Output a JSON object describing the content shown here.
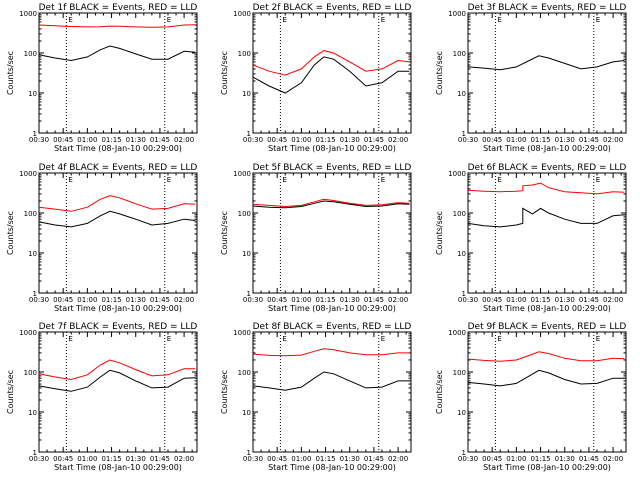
{
  "page": {
    "x_axis_title": "Start Time (08-Jan-10 00:29:00)",
    "y_axis_title": "Counts/sec"
  },
  "chart_data": [
    {
      "type": "line",
      "title": "Det 1f BLACK = Events, RED = LLD",
      "xlabel": "Start Time (08-Jan-10 00:29:00)",
      "ylabel": "Counts/sec",
      "yscale": "log",
      "ylim": [
        1,
        1000
      ],
      "xlim": [
        "00:30",
        "02:08"
      ],
      "x_ticks": [
        "00:30",
        "00:45",
        "01:00",
        "01:15",
        "01:30",
        "01:45",
        "02:00"
      ],
      "y_ticks": [
        "1",
        "10",
        "100",
        "1000"
      ],
      "vertical_markers": [
        "00:47",
        "01:48"
      ],
      "marker_labels": [
        {
          "text": "E",
          "at": "00:47"
        },
        {
          "text": "E",
          "at": "01:48"
        }
      ],
      "x": [
        "00:30",
        "00:40",
        "00:50",
        "01:00",
        "01:08",
        "01:14",
        "01:20",
        "01:30",
        "01:40",
        "01:50",
        "02:00",
        "02:07"
      ],
      "series": [
        {
          "color": "#ff0000",
          "values": [
            500,
            480,
            460,
            450,
            455,
            470,
            465,
            450,
            440,
            450,
            500,
            510
          ]
        },
        {
          "color": "#000000",
          "values": [
            90,
            75,
            65,
            80,
            120,
            150,
            130,
            95,
            70,
            70,
            110,
            105
          ]
        }
      ]
    },
    {
      "type": "line",
      "title": "Det 2f BLACK = Events, RED = LLD",
      "xlabel": "Start Time (08-Jan-10 00:29:00)",
      "ylabel": "Counts/sec",
      "yscale": "log",
      "ylim": [
        1,
        1000
      ],
      "xlim": [
        "00:30",
        "02:08"
      ],
      "x_ticks": [
        "00:30",
        "00:45",
        "01:00",
        "01:15",
        "01:30",
        "01:45",
        "02:00"
      ],
      "y_ticks": [
        "1",
        "10",
        "100",
        "1000"
      ],
      "vertical_markers": [
        "00:47",
        "01:48"
      ],
      "marker_labels": [
        {
          "text": "E",
          "at": "00:47"
        },
        {
          "text": "E",
          "at": "01:48"
        }
      ],
      "x": [
        "00:30",
        "00:40",
        "00:50",
        "01:00",
        "01:08",
        "01:14",
        "01:20",
        "01:30",
        "01:40",
        "01:50",
        "02:00",
        "02:07"
      ],
      "series": [
        {
          "color": "#ff0000",
          "values": [
            50,
            35,
            28,
            40,
            80,
            115,
            100,
            60,
            35,
            40,
            65,
            60
          ]
        },
        {
          "color": "#000000",
          "values": [
            25,
            15,
            10,
            18,
            50,
            80,
            70,
            35,
            15,
            18,
            35,
            35
          ]
        }
      ]
    },
    {
      "type": "line",
      "title": "Det 3f BLACK = Events, RED = LLD",
      "xlabel": "Start Time (08-Jan-10 00:29:00)",
      "ylabel": "Counts/sec",
      "yscale": "log",
      "ylim": [
        1,
        1000
      ],
      "xlim": [
        "00:30",
        "02:08"
      ],
      "x_ticks": [
        "00:30",
        "00:45",
        "01:00",
        "01:15",
        "01:30",
        "01:45",
        "02:00"
      ],
      "y_ticks": [
        "1",
        "10",
        "100",
        "1000"
      ],
      "vertical_markers": [
        "00:47",
        "01:48"
      ],
      "marker_labels": [
        {
          "text": "E",
          "at": "00:47"
        },
        {
          "text": "E",
          "at": "01:48"
        }
      ],
      "x": [
        "00:30",
        "00:40",
        "00:50",
        "01:00",
        "01:08",
        "01:14",
        "01:20",
        "01:30",
        "01:40",
        "01:50",
        "02:00",
        "02:07"
      ],
      "series": [
        {
          "color": "#000000",
          "values": [
            45,
            42,
            38,
            45,
            65,
            85,
            75,
            55,
            40,
            45,
            60,
            65
          ]
        }
      ]
    },
    {
      "type": "line",
      "title": "Det 4f BLACK = Events, RED = LLD",
      "xlabel": "Start Time (08-Jan-10 00:29:00)",
      "ylabel": "Counts/sec",
      "yscale": "log",
      "ylim": [
        1,
        1000
      ],
      "xlim": [
        "00:30",
        "02:08"
      ],
      "x_ticks": [
        "00:30",
        "00:45",
        "01:00",
        "01:15",
        "01:30",
        "01:45",
        "02:00"
      ],
      "y_ticks": [
        "1",
        "10",
        "100",
        "1000"
      ],
      "vertical_markers": [
        "00:47",
        "01:48"
      ],
      "marker_labels": [
        {
          "text": "E",
          "at": "00:47"
        },
        {
          "text": "E",
          "at": "01:48"
        }
      ],
      "x": [
        "00:30",
        "00:40",
        "00:50",
        "01:00",
        "01:08",
        "01:14",
        "01:20",
        "01:30",
        "01:40",
        "01:50",
        "02:00",
        "02:07"
      ],
      "series": [
        {
          "color": "#ff0000",
          "values": [
            140,
            125,
            110,
            140,
            220,
            270,
            240,
            170,
            125,
            130,
            170,
            165
          ]
        },
        {
          "color": "#000000",
          "values": [
            60,
            50,
            45,
            55,
            85,
            110,
            95,
            70,
            50,
            55,
            70,
            65
          ]
        }
      ]
    },
    {
      "type": "line",
      "title": "Det 5f BLACK = Events, RED = LLD",
      "xlabel": "Start Time (08-Jan-10 00:29:00)",
      "ylabel": "Counts/sec",
      "yscale": "log",
      "ylim": [
        1,
        1000
      ],
      "xlim": [
        "00:30",
        "02:08"
      ],
      "x_ticks": [
        "00:30",
        "00:45",
        "01:00",
        "01:15",
        "01:30",
        "01:45",
        "02:00"
      ],
      "y_ticks": [
        "1",
        "10",
        "100",
        "1000"
      ],
      "vertical_markers": [
        "00:47",
        "01:48"
      ],
      "marker_labels": [
        {
          "text": "E",
          "at": "00:47"
        },
        {
          "text": "E",
          "at": "01:48"
        }
      ],
      "x": [
        "00:30",
        "00:40",
        "00:50",
        "01:00",
        "01:08",
        "01:14",
        "01:20",
        "01:30",
        "01:40",
        "01:50",
        "02:00",
        "02:07"
      ],
      "series": [
        {
          "color": "#ff0000",
          "values": [
            165,
            155,
            145,
            155,
            190,
            220,
            205,
            175,
            155,
            160,
            180,
            175
          ]
        },
        {
          "color": "#000000",
          "values": [
            150,
            140,
            135,
            145,
            175,
            200,
            190,
            165,
            145,
            150,
            170,
            165
          ]
        }
      ]
    },
    {
      "type": "line",
      "title": "Det 6f BLACK = Events, RED = LLD",
      "xlabel": "Start Time (08-Jan-10 00:29:00)",
      "ylabel": "Counts/sec",
      "yscale": "log",
      "ylim": [
        1,
        1000
      ],
      "xlim": [
        "00:30",
        "02:08"
      ],
      "x_ticks": [
        "00:30",
        "00:45",
        "01:00",
        "01:15",
        "01:30",
        "01:45",
        "02:00"
      ],
      "y_ticks": [
        "1",
        "10",
        "100",
        "1000"
      ],
      "vertical_markers": [
        "00:47",
        "01:48"
      ],
      "marker_labels": [
        {
          "text": "E",
          "at": "00:47"
        },
        {
          "text": "E",
          "at": "01:48"
        }
      ],
      "x": [
        "00:30",
        "00:40",
        "00:50",
        "01:00",
        "01:04",
        "01:04",
        "01:10",
        "01:15",
        "01:20",
        "01:30",
        "01:40",
        "01:50",
        "02:00",
        "02:07"
      ],
      "series": [
        {
          "color": "#ff0000",
          "values": [
            370,
            350,
            340,
            350,
            360,
            480,
            500,
            560,
            430,
            340,
            320,
            300,
            340,
            330
          ]
        },
        {
          "color": "#000000",
          "values": [
            55,
            48,
            45,
            50,
            55,
            130,
            95,
            130,
            100,
            70,
            55,
            55,
            85,
            90
          ]
        }
      ]
    },
    {
      "type": "line",
      "title": "Det 7f BLACK = Events, RED = LLD",
      "xlabel": "Start Time (08-Jan-10 00:29:00)",
      "ylabel": "Counts/sec",
      "yscale": "log",
      "ylim": [
        1,
        1000
      ],
      "xlim": [
        "00:30",
        "02:08"
      ],
      "x_ticks": [
        "00:30",
        "00:45",
        "01:00",
        "01:15",
        "01:30",
        "01:45",
        "02:00"
      ],
      "y_ticks": [
        "1",
        "10",
        "100",
        "1000"
      ],
      "vertical_markers": [
        "00:47",
        "01:48"
      ],
      "marker_labels": [
        {
          "text": "E",
          "at": "00:47"
        },
        {
          "text": "E",
          "at": "01:48"
        }
      ],
      "x": [
        "00:30",
        "00:40",
        "00:50",
        "01:00",
        "01:08",
        "01:14",
        "01:20",
        "01:30",
        "01:40",
        "01:50",
        "02:00",
        "02:07"
      ],
      "series": [
        {
          "color": "#ff0000",
          "values": [
            90,
            75,
            65,
            85,
            150,
            200,
            170,
            115,
            80,
            85,
            120,
            120
          ]
        },
        {
          "color": "#000000",
          "values": [
            45,
            38,
            33,
            42,
            75,
            110,
            95,
            60,
            40,
            42,
            70,
            72
          ]
        }
      ]
    },
    {
      "type": "line",
      "title": "Det 8f BLACK = Events, RED = LLD",
      "xlabel": "Start Time (08-Jan-10 00:29:00)",
      "ylabel": "Counts/sec",
      "yscale": "log",
      "ylim": [
        1,
        1000
      ],
      "xlim": [
        "00:30",
        "02:08"
      ],
      "x_ticks": [
        "00:30",
        "00:45",
        "01:00",
        "01:15",
        "01:30",
        "01:45",
        "02:00"
      ],
      "y_ticks": [
        "1",
        "10",
        "100",
        "1000"
      ],
      "vertical_markers": [
        "00:47",
        "01:48"
      ],
      "marker_labels": [
        {
          "text": "E",
          "at": "00:47"
        },
        {
          "text": "E",
          "at": "01:48"
        }
      ],
      "x": [
        "00:30",
        "00:40",
        "00:50",
        "01:00",
        "01:08",
        "01:14",
        "01:20",
        "01:30",
        "01:40",
        "01:50",
        "02:00",
        "02:07"
      ],
      "series": [
        {
          "color": "#ff0000",
          "values": [
            280,
            260,
            255,
            265,
            330,
            380,
            360,
            300,
            270,
            270,
            300,
            300
          ]
        },
        {
          "color": "#000000",
          "values": [
            45,
            40,
            35,
            42,
            70,
            100,
            90,
            60,
            40,
            42,
            60,
            60
          ]
        }
      ]
    },
    {
      "type": "line",
      "title": "Det 9f BLACK = Events, RED = LLD",
      "xlabel": "Start Time (08-Jan-10 00:29:00)",
      "ylabel": "Counts/sec",
      "yscale": "log",
      "ylim": [
        1,
        1000
      ],
      "xlim": [
        "00:30",
        "02:08"
      ],
      "x_ticks": [
        "00:30",
        "00:45",
        "01:00",
        "01:15",
        "01:30",
        "01:45",
        "02:00"
      ],
      "y_ticks": [
        "1",
        "10",
        "100",
        "1000"
      ],
      "vertical_markers": [
        "00:47",
        "01:48"
      ],
      "marker_labels": [
        {
          "text": "E",
          "at": "00:47"
        },
        {
          "text": "E",
          "at": "01:48"
        }
      ],
      "x": [
        "00:30",
        "00:40",
        "00:50",
        "01:00",
        "01:08",
        "01:14",
        "01:20",
        "01:30",
        "01:40",
        "01:50",
        "02:00",
        "02:07"
      ],
      "series": [
        {
          "color": "#ff0000",
          "values": [
            210,
            195,
            185,
            200,
            260,
            320,
            290,
            220,
            190,
            190,
            220,
            215
          ]
        },
        {
          "color": "#000000",
          "values": [
            55,
            50,
            45,
            52,
            80,
            110,
            95,
            65,
            50,
            52,
            70,
            70
          ]
        }
      ]
    }
  ]
}
